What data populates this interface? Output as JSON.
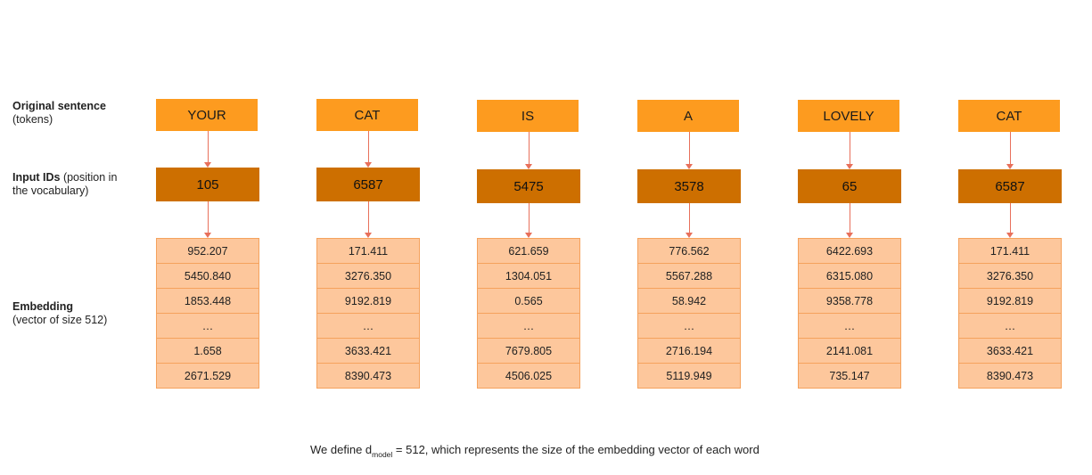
{
  "labels": {
    "tokens_bold": "Original sentence",
    "tokens_rest": "(tokens)",
    "ids_bold": "Input IDs",
    "ids_rest1": " (position in",
    "ids_rest2": "the vocabulary)",
    "emb_bold": "Embedding",
    "emb_rest": "(vector of size 512)"
  },
  "columns": [
    {
      "token": "YOUR",
      "id": "105",
      "embedding": [
        "952.207",
        "5450.840",
        "1853.448",
        "…",
        "1.658",
        "2671.529"
      ]
    },
    {
      "token": "CAT",
      "id": "6587",
      "embedding": [
        "171.411",
        "3276.350",
        "9192.819",
        "…",
        "3633.421",
        "8390.473"
      ]
    },
    {
      "token": "IS",
      "id": "5475",
      "embedding": [
        "621.659",
        "1304.051",
        "0.565",
        "…",
        "7679.805",
        "4506.025"
      ]
    },
    {
      "token": "A",
      "id": "3578",
      "embedding": [
        "776.562",
        "5567.288",
        "58.942",
        "…",
        "2716.194",
        "5119.949"
      ]
    },
    {
      "token": "LOVELY",
      "id": "65",
      "embedding": [
        "6422.693",
        "6315.080",
        "9358.778",
        "…",
        "2141.081",
        "735.147"
      ]
    },
    {
      "token": "CAT",
      "id": "6587",
      "embedding": [
        "171.411",
        "3276.350",
        "9192.819",
        "…",
        "3633.421",
        "8390.473"
      ]
    }
  ],
  "footnote": {
    "prefix": "We define d",
    "subscript": "model",
    "suffix": " = 512, which represents the size of the embedding vector of each word"
  },
  "colors": {
    "token_box": "#fd9b1f",
    "id_box": "#cd6f00",
    "embedding_cell": "#fdc79c",
    "arrow": "#e8705b"
  }
}
